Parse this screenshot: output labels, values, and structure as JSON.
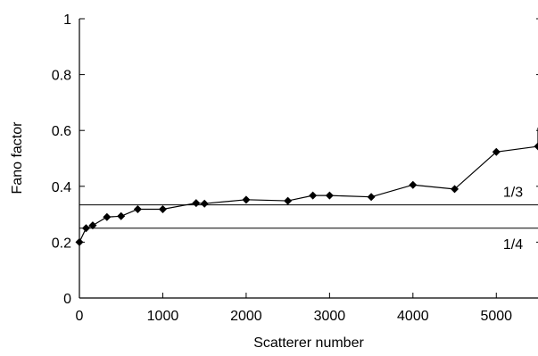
{
  "chart_data": {
    "type": "line",
    "title": "",
    "xlabel": "Scatterer number",
    "ylabel": "Fano factor",
    "xlim": [
      0,
      5500
    ],
    "ylim": [
      0,
      1
    ],
    "x_ticks": [
      0,
      1000,
      2000,
      3000,
      4000,
      5000
    ],
    "y_ticks": [
      0,
      0.2,
      0.4,
      0.6,
      0.8,
      1
    ],
    "x_tick_labels": [
      "0",
      "1000",
      "2000",
      "3000",
      "4000",
      "5000"
    ],
    "y_tick_labels": [
      "0",
      "0.2",
      "0.4",
      "0.6",
      "0.8",
      "1"
    ],
    "grid": false,
    "series": [
      {
        "x": [
          0,
          80,
          160,
          330,
          500,
          700,
          1000,
          1400,
          1500,
          2000,
          2500,
          2800,
          3000,
          3500,
          4000,
          4500,
          5000,
          5500
        ],
        "y": [
          0.2,
          0.25,
          0.26,
          0.29,
          0.293,
          0.318,
          0.318,
          0.34,
          0.338,
          0.352,
          0.348,
          0.367,
          0.367,
          0.362,
          0.405,
          0.39,
          0.523,
          0.543
        ],
        "marker": "diamond",
        "color": "#000000",
        "continues_to": {
          "x": 5500,
          "y": 0.61
        }
      }
    ],
    "reference_lines": [
      {
        "y": 0.3333,
        "label": "1/3"
      },
      {
        "y": 0.25,
        "label": "1/4"
      }
    ]
  }
}
